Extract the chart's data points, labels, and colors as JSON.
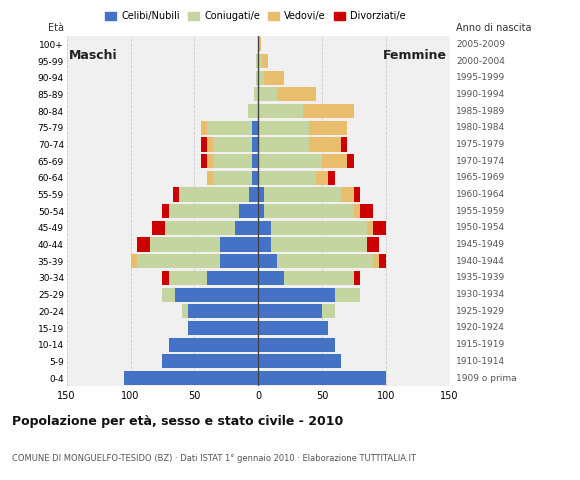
{
  "age_groups": [
    "0-4",
    "5-9",
    "10-14",
    "15-19",
    "20-24",
    "25-29",
    "30-34",
    "35-39",
    "40-44",
    "45-49",
    "50-54",
    "55-59",
    "60-64",
    "65-69",
    "70-74",
    "75-79",
    "80-84",
    "85-89",
    "90-94",
    "95-99",
    "100+"
  ],
  "birth_years": [
    "2005-2009",
    "2000-2004",
    "1995-1999",
    "1990-1994",
    "1985-1989",
    "1980-1984",
    "1975-1979",
    "1970-1974",
    "1965-1969",
    "1960-1964",
    "1955-1959",
    "1950-1954",
    "1945-1949",
    "1940-1944",
    "1935-1939",
    "1930-1934",
    "1925-1929",
    "1920-1924",
    "1915-1919",
    "1910-1914",
    "1909 o prima"
  ],
  "male": {
    "celibe": [
      105,
      75,
      70,
      55,
      55,
      65,
      40,
      30,
      30,
      18,
      15,
      7,
      5,
      5,
      5,
      5,
      0,
      0,
      0,
      0,
      0
    ],
    "coniugato": [
      0,
      0,
      0,
      0,
      5,
      10,
      30,
      65,
      55,
      55,
      55,
      55,
      30,
      30,
      30,
      35,
      8,
      3,
      2,
      2,
      0
    ],
    "vedovo": [
      0,
      0,
      0,
      0,
      0,
      0,
      0,
      5,
      0,
      0,
      0,
      0,
      5,
      5,
      5,
      5,
      0,
      0,
      0,
      0,
      0
    ],
    "divorziato": [
      0,
      0,
      0,
      0,
      0,
      0,
      5,
      0,
      10,
      10,
      5,
      5,
      0,
      5,
      5,
      0,
      0,
      0,
      0,
      0,
      0
    ]
  },
  "female": {
    "nubile": [
      100,
      65,
      60,
      55,
      50,
      60,
      20,
      15,
      10,
      10,
      5,
      5,
      0,
      0,
      0,
      0,
      0,
      0,
      0,
      0,
      0
    ],
    "coniugata": [
      0,
      0,
      0,
      0,
      10,
      20,
      55,
      75,
      75,
      75,
      70,
      60,
      45,
      50,
      40,
      40,
      35,
      15,
      5,
      3,
      0
    ],
    "vedova": [
      0,
      0,
      0,
      0,
      0,
      0,
      0,
      5,
      0,
      5,
      5,
      10,
      10,
      20,
      25,
      30,
      40,
      30,
      15,
      5,
      2
    ],
    "divorziata": [
      0,
      0,
      0,
      0,
      0,
      0,
      5,
      5,
      10,
      10,
      10,
      5,
      5,
      5,
      5,
      0,
      0,
      0,
      0,
      0,
      0
    ]
  },
  "colors": {
    "celibe": "#4472C4",
    "coniugato": "#C5D5A0",
    "vedovo": "#E8BE6D",
    "divorziato": "#CC0000"
  },
  "legend_labels": [
    "Celibi/Nubili",
    "Coniugati/e",
    "Vedovi/e",
    "Divorziati/e"
  ],
  "legend_colors": [
    "#4472C4",
    "#C5D5A0",
    "#E8BE6D",
    "#CC0000"
  ],
  "title": "Popolazione per età, sesso e stato civile - 2010",
  "subtitle": "COMUNE DI MONGUELFO-TESIDO (BZ) · Dati ISTAT 1° gennaio 2010 · Elaborazione TUTTITALIA.IT",
  "xlabel_left": "Maschi",
  "xlabel_right": "Femmine",
  "ylabel_left": "Età",
  "ylabel_right": "Anno di nascita",
  "xlim": 150,
  "background_color": "#ffffff",
  "plot_bg_color": "#f0f0f0",
  "grid_color": "#cccccc"
}
